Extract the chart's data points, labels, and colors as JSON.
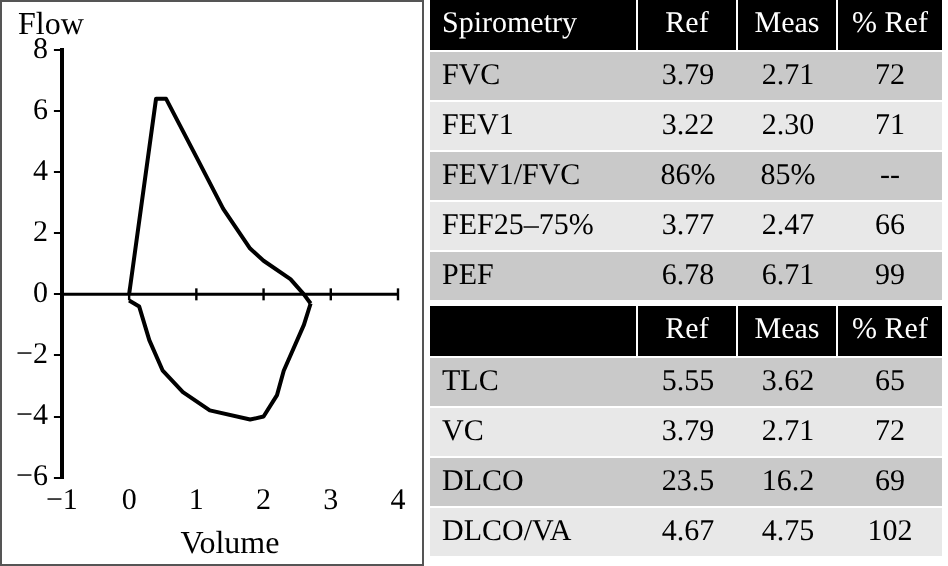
{
  "chart_data": [
    {
      "type": "line",
      "xlabel": "Volume",
      "ylabel": "Flow",
      "xlim": [
        -1,
        4
      ],
      "xticks": [
        -1,
        0,
        1,
        2,
        3,
        4
      ],
      "ylim": [
        -6,
        8
      ],
      "yticks": [
        -6,
        -4,
        -2,
        0,
        2,
        4,
        6,
        8
      ],
      "grid": false,
      "legend": false,
      "ref_lines": [
        {
          "axis": "y",
          "value": 0,
          "color": "#000000"
        }
      ],
      "series": [
        {
          "color": "#000000",
          "x": [
            0,
            0.4,
            0.55,
            1.0,
            1.4,
            1.8,
            2.0,
            2.4,
            2.6,
            2.7
          ],
          "values": [
            0,
            6.4,
            6.4,
            4.5,
            2.8,
            1.5,
            1.1,
            0.5,
            0,
            -0.3
          ]
        },
        {
          "color": "#000000",
          "x": [
            0,
            0.15,
            0.3,
            0.5,
            0.8,
            1.2,
            1.8,
            2.0,
            2.2,
            2.3,
            2.6,
            2.7
          ],
          "values": [
            -0.2,
            -0.4,
            -1.5,
            -2.5,
            -3.2,
            -3.8,
            -4.1,
            -4,
            -3.3,
            -2.5,
            -1,
            -0.3
          ]
        }
      ]
    },
    {
      "type": "other",
      "title": "Spirometry",
      "categories": [
        "Ref",
        "Meas",
        "% Ref"
      ],
      "y_categories": [
        "FVC",
        "FEV1",
        "FEV1/FVC",
        "FEF25–75%",
        "PEF"
      ],
      "cell_labels": [
        [
          "3.79",
          "2.71",
          "72"
        ],
        [
          "3.22",
          "2.30",
          "71"
        ],
        [
          "86%",
          "85%",
          "--"
        ],
        [
          "3.77",
          "2.47",
          "66"
        ],
        [
          "6.78",
          "6.71",
          "99"
        ]
      ]
    },
    {
      "type": "other",
      "categories": [
        "Ref",
        "Meas",
        "% Ref"
      ],
      "y_categories": [
        "TLC",
        "VC",
        "DLCO",
        "DLCO/VA"
      ],
      "cell_labels": [
        [
          "5.55",
          "3.62",
          "65"
        ],
        [
          "3.79",
          "2.71",
          "72"
        ],
        [
          "23.5",
          "16.2",
          "69"
        ],
        [
          "4.67",
          "4.75",
          "102"
        ]
      ]
    }
  ]
}
